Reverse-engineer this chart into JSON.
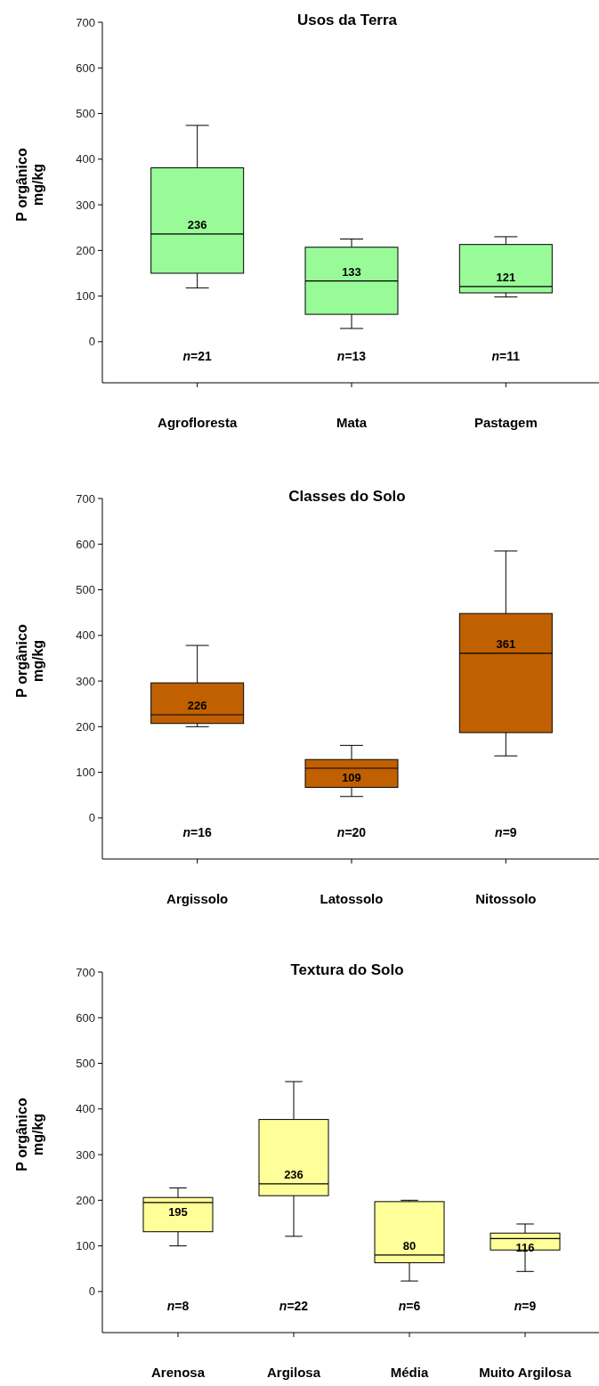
{
  "chart_data": [
    {
      "type": "box",
      "title": "Usos da Terra",
      "ylabel": "P orgânico\nmg/kg",
      "categories": [
        "Agrofloresta",
        "Mata",
        "Pastagem"
      ],
      "ylim": [
        -90,
        700
      ],
      "yticks": [
        0,
        100,
        200,
        300,
        400,
        500,
        600,
        700
      ],
      "series": [
        {
          "color": "#98fb98",
          "value_labels": [
            "236",
            "133",
            "121"
          ],
          "boxes": [
            {
              "low": 118,
              "q1": 150,
              "median": 236,
              "q3": 381,
              "high": 474
            },
            {
              "low": 29,
              "q1": 60,
              "median": 133,
              "q3": 207,
              "high": 225
            },
            {
              "low": 98,
              "q1": 107,
              "median": 121,
              "q3": 213,
              "high": 230
            }
          ]
        }
      ],
      "annotations": [
        "n=21",
        "n=13",
        "n=11"
      ]
    },
    {
      "type": "box",
      "title": "Classes do Solo",
      "ylabel": "P orgânico\nmg/kg",
      "categories": [
        "Argissolo",
        "Latossolo",
        "Nitossolo"
      ],
      "ylim": [
        -90,
        700
      ],
      "yticks": [
        0,
        100,
        200,
        300,
        400,
        500,
        600,
        700
      ],
      "series": [
        {
          "color": "#c06000",
          "value_labels": [
            "226",
            "109",
            "361"
          ],
          "boxes": [
            {
              "low": 200,
              "q1": 207,
              "median": 226,
              "q3": 296,
              "high": 378
            },
            {
              "low": 47,
              "q1": 67,
              "median": 109,
              "q3": 128,
              "high": 159
            },
            {
              "low": 136,
              "q1": 187,
              "median": 361,
              "q3": 448,
              "high": 585
            }
          ]
        }
      ],
      "annotations": [
        "n=16",
        "n=20",
        "n=9"
      ]
    },
    {
      "type": "box",
      "title": "Textura do Solo",
      "ylabel": "P orgânico\nmg/kg",
      "categories": [
        "Arenosa",
        "Argilosa",
        "Média",
        "Muito Argilosa"
      ],
      "ylim": [
        -90,
        700
      ],
      "yticks": [
        0,
        100,
        200,
        300,
        400,
        500,
        600,
        700
      ],
      "series": [
        {
          "color": "#ffff99",
          "value_labels": [
            "195",
            "236",
            "80",
            "116"
          ],
          "boxes": [
            {
              "low": 100,
              "q1": 131,
              "median": 195,
              "q3": 206,
              "high": 227
            },
            {
              "low": 121,
              "q1": 210,
              "median": 236,
              "q3": 377,
              "high": 460
            },
            {
              "low": 23,
              "q1": 63,
              "median": 80,
              "q3": 197,
              "high": 200
            },
            {
              "low": 44,
              "q1": 91,
              "median": 116,
              "q3": 128,
              "high": 148
            }
          ]
        }
      ],
      "annotations": [
        "n=8",
        "n=22",
        "n=6",
        "n=9"
      ]
    }
  ]
}
